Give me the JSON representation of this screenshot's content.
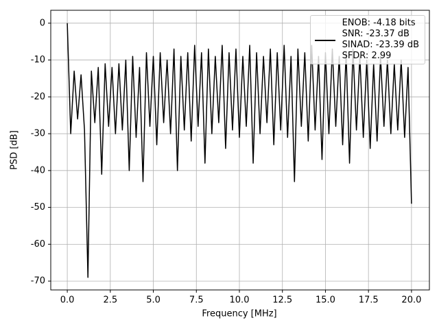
{
  "chart_data": {
    "type": "line",
    "xlabel": "Frequency [MHz]",
    "ylabel": "PSD [dB]",
    "x": [
      0,
      0.2,
      0.4,
      0.6,
      0.8,
      1.0,
      1.2,
      1.4,
      1.6,
      1.8,
      2.0,
      2.2,
      2.4,
      2.6,
      2.8,
      3.0,
      3.2,
      3.4,
      3.6,
      3.8,
      4.0,
      4.2,
      4.4,
      4.6,
      4.8,
      5.0,
      5.2,
      5.4,
      5.6,
      5.8,
      6.0,
      6.2,
      6.4,
      6.6,
      6.8,
      7.0,
      7.2,
      7.4,
      7.6,
      7.8,
      8.0,
      8.2,
      8.4,
      8.6,
      8.8,
      9.0,
      9.2,
      9.4,
      9.6,
      9.8,
      10.0,
      10.2,
      10.4,
      10.6,
      10.8,
      11.0,
      11.2,
      11.4,
      11.6,
      11.8,
      12.0,
      12.2,
      12.4,
      12.6,
      12.8,
      13.0,
      13.2,
      13.4,
      13.6,
      13.8,
      14.0,
      14.2,
      14.4,
      14.6,
      14.8,
      15.0,
      15.2,
      15.4,
      15.6,
      15.8,
      16.0,
      16.2,
      16.4,
      16.6,
      16.8,
      17.0,
      17.2,
      17.4,
      17.6,
      17.8,
      18.0,
      18.2,
      18.4,
      18.6,
      18.8,
      19.0,
      19.2,
      19.4,
      19.6,
      19.8,
      20.0
    ],
    "series": [
      {
        "name": "ENOB: -4.18 bits\nSNR: -23.37 dB\nSINAD: -23.39 dB\nSFDR: 2.99",
        "color": "#000000",
        "values": [
          0,
          -30,
          -13,
          -26,
          -14,
          -29,
          -69,
          -13,
          -27,
          -12,
          -41,
          -11,
          -28,
          -12,
          -30,
          -11,
          -29,
          -10,
          -40,
          -9,
          -31,
          -12,
          -43,
          -8,
          -28,
          -9,
          -33,
          -8,
          -27,
          -10,
          -30,
          -7,
          -40,
          -9,
          -29,
          -8,
          -32,
          -6,
          -28,
          -8,
          -38,
          -7,
          -30,
          -9,
          -27,
          -6,
          -34,
          -8,
          -29,
          -7,
          -31,
          -9,
          -28,
          -6,
          -38,
          -8,
          -30,
          -9,
          -27,
          -7,
          -33,
          -8,
          -29,
          -6,
          -31,
          -9,
          -43,
          -7,
          -28,
          -8,
          -32,
          -6,
          -29,
          -9,
          -37,
          -8,
          -30,
          -7,
          -28,
          -9,
          -33,
          -8,
          -38,
          -7,
          -29,
          -9,
          -31,
          -10,
          -34,
          -11,
          -32,
          -9,
          -28,
          -10,
          -30,
          -11,
          -29,
          -10,
          -31,
          -12,
          -49
        ]
      }
    ],
    "xlim": [
      -0.96,
      21.04
    ],
    "ylim": [
      -72.4,
      3.5
    ],
    "xticks": [
      {
        "value": 0,
        "label": "0.0"
      },
      {
        "value": 2.5,
        "label": "2.5"
      },
      {
        "value": 5,
        "label": "5.0"
      },
      {
        "value": 7.5,
        "label": "7.5"
      },
      {
        "value": 10,
        "label": "10.0"
      },
      {
        "value": 12.5,
        "label": "12.5"
      },
      {
        "value": 15,
        "label": "15.0"
      },
      {
        "value": 17.5,
        "label": "17.5"
      },
      {
        "value": 20,
        "label": "20.0"
      }
    ],
    "yticks": [
      0,
      -10,
      -20,
      -30,
      -40,
      -50,
      -60,
      -70
    ],
    "grid": true,
    "legend": "upper right"
  }
}
